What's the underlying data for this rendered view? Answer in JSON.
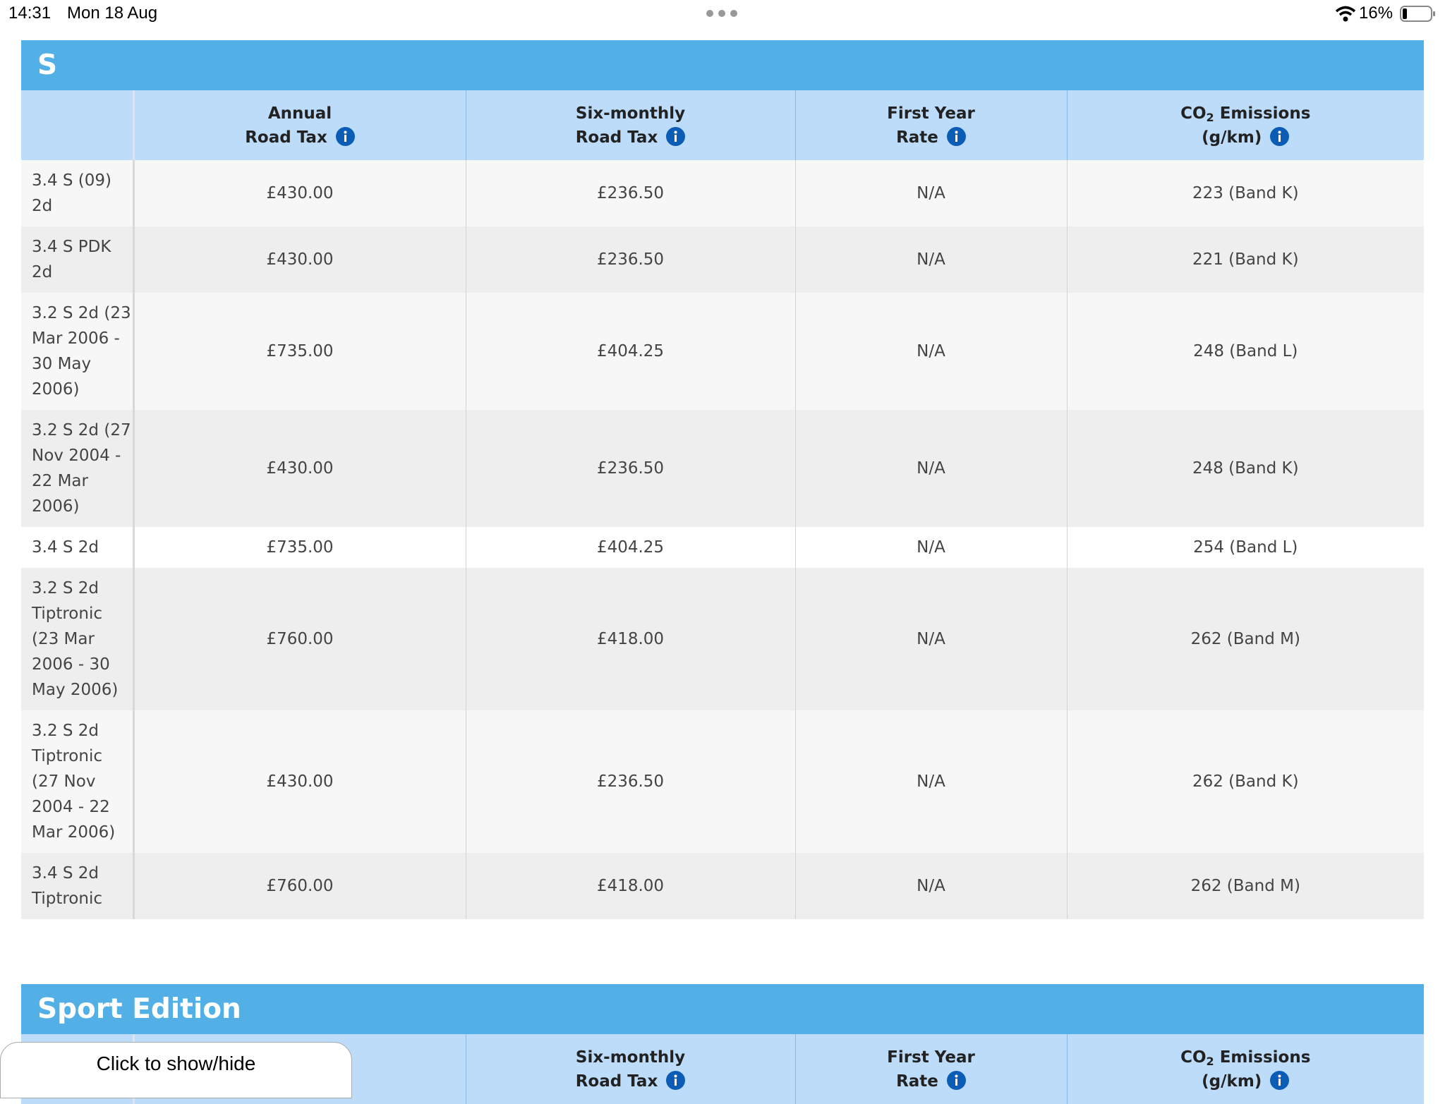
{
  "status_bar": {
    "time": "14:31",
    "date": "Mon 18 Aug",
    "battery": "16%"
  },
  "sections": [
    {
      "title": "S",
      "columns": [
        {
          "line1": "Annual",
          "line2": "Road Tax"
        },
        {
          "line1": "Six-monthly",
          "line2": "Road Tax"
        },
        {
          "line1": "First Year",
          "line2": "Rate"
        },
        {
          "line1": "CO₂ Emissions",
          "line2": "(g/km)"
        }
      ],
      "rows": [
        [
          "3.4 S (09) 2d",
          "£430.00",
          "£236.50",
          "N/A",
          "223 (Band K)"
        ],
        [
          "3.4 S PDK 2d",
          "£430.00",
          "£236.50",
          "N/A",
          "221 (Band K)"
        ],
        [
          "3.2 S 2d (23 Mar 2006 - 30 May 2006)",
          "£735.00",
          "£404.25",
          "N/A",
          "248 (Band L)"
        ],
        [
          "3.2 S 2d (27 Nov 2004 - 22 Mar 2006)",
          "£430.00",
          "£236.50",
          "N/A",
          "248 (Band K)"
        ],
        [
          "3.4 S 2d",
          "£735.00",
          "£404.25",
          "N/A",
          "254 (Band L)"
        ],
        [
          "3.2 S 2d Tiptronic (23 Mar 2006 - 30 May 2006)",
          "£760.00",
          "£418.00",
          "N/A",
          "262 (Band M)"
        ],
        [
          "3.2 S 2d Tiptronic (27 Nov 2004 - 22 Mar 2006)",
          "£430.00",
          "£236.50",
          "N/A",
          "262 (Band K)"
        ],
        [
          "3.4 S 2d Tiptronic",
          "£760.00",
          "£418.00",
          "N/A",
          "262 (Band M)"
        ]
      ]
    },
    {
      "title": "Sport Edition",
      "columns": [
        {
          "line1": "Six-monthly",
          "line2": "Road Tax"
        },
        {
          "line1": "First Year",
          "line2": "Rate"
        },
        {
          "line1": "CO₂ Emissions",
          "line2": "(g/km)"
        }
      ],
      "rows": []
    }
  ],
  "popup": {
    "label": "Click to show/hide"
  }
}
